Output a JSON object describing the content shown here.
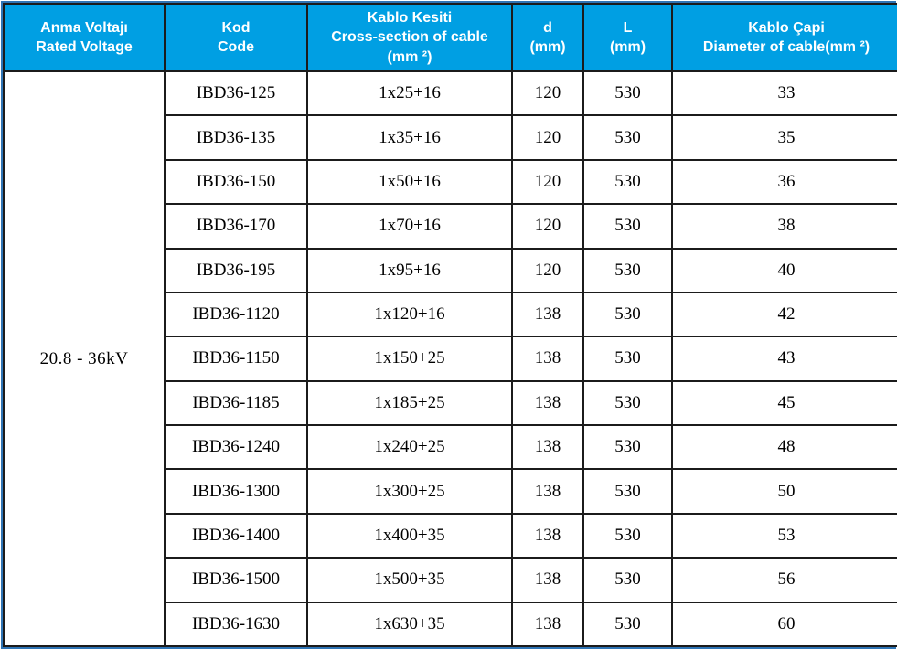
{
  "colors": {
    "header_bg": "#009FE3",
    "header_text": "#FFFFFF",
    "grid": "#1B1B1B",
    "outer_border": "#2E74B5"
  },
  "table": {
    "headers": [
      {
        "id": "rated-voltage",
        "label": "Anma Voltajı\nRated Voltage"
      },
      {
        "id": "code",
        "label": "Kod\nCode"
      },
      {
        "id": "cross-section",
        "label": "Kablo Kesiti\nCross-section of cable\n(mm ²)"
      },
      {
        "id": "d-mm",
        "label": "d\n(mm)"
      },
      {
        "id": "l-mm",
        "label": "L\n(mm)"
      },
      {
        "id": "cable-diameter",
        "label": "Kablo Çapi\nDiameter of cable(mm ²)"
      }
    ],
    "merged_voltage": "20.8 - 36kV",
    "rows": [
      {
        "code": "IBD36-125",
        "cross_section": "1x25+16",
        "d_mm": "120",
        "l_mm": "530",
        "diameter": "33"
      },
      {
        "code": "IBD36-135",
        "cross_section": "1x35+16",
        "d_mm": "120",
        "l_mm": "530",
        "diameter": "35"
      },
      {
        "code": "IBD36-150",
        "cross_section": "1x50+16",
        "d_mm": "120",
        "l_mm": "530",
        "diameter": "36"
      },
      {
        "code": "IBD36-170",
        "cross_section": "1x70+16",
        "d_mm": "120",
        "l_mm": "530",
        "diameter": "38"
      },
      {
        "code": "IBD36-195",
        "cross_section": "1x95+16",
        "d_mm": "120",
        "l_mm": "530",
        "diameter": "40"
      },
      {
        "code": "IBD36-1120",
        "cross_section": "1x120+16",
        "d_mm": "138",
        "l_mm": "530",
        "diameter": "42"
      },
      {
        "code": "IBD36-1150",
        "cross_section": "1x150+25",
        "d_mm": "138",
        "l_mm": "530",
        "diameter": "43"
      },
      {
        "code": "IBD36-1185",
        "cross_section": "1x185+25",
        "d_mm": "138",
        "l_mm": "530",
        "diameter": "45"
      },
      {
        "code": "IBD36-1240",
        "cross_section": "1x240+25",
        "d_mm": "138",
        "l_mm": "530",
        "diameter": "48"
      },
      {
        "code": "IBD36-1300",
        "cross_section": "1x300+25",
        "d_mm": "138",
        "l_mm": "530",
        "diameter": "50"
      },
      {
        "code": "IBD36-1400",
        "cross_section": "1x400+35",
        "d_mm": "138",
        "l_mm": "530",
        "diameter": "53"
      },
      {
        "code": "IBD36-1500",
        "cross_section": "1x500+35",
        "d_mm": "138",
        "l_mm": "530",
        "diameter": "56"
      },
      {
        "code": "IBD36-1630",
        "cross_section": "1x630+35",
        "d_mm": "138",
        "l_mm": "530",
        "diameter": "60"
      }
    ]
  }
}
